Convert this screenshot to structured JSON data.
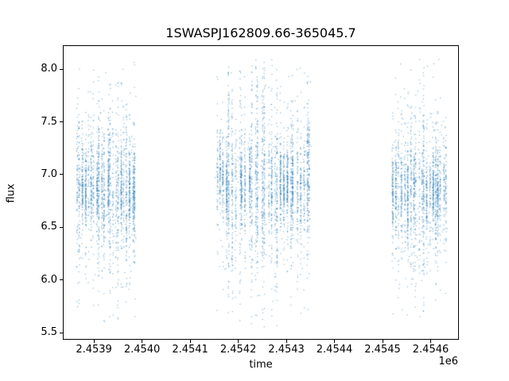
{
  "chart_data": {
    "type": "scatter",
    "title": "1SWASPJ162809.66-365045.7",
    "xlabel": "time",
    "ylabel": "flux",
    "x_offset_label": "1e6",
    "xlim": [
      2453837,
      2454657
    ],
    "ylim": [
      5.44,
      8.22
    ],
    "xticks": {
      "values": [
        2453900,
        2454000,
        2454100,
        2454200,
        2454300,
        2454400,
        2454500,
        2454600
      ],
      "labels": [
        "2.4539",
        "2.4540",
        "2.4541",
        "2.4542",
        "2.4543",
        "2.4544",
        "2.4545",
        "2.4546"
      ]
    },
    "yticks": {
      "values": [
        5.5,
        6.0,
        6.5,
        7.0,
        7.5,
        8.0
      ],
      "labels": [
        "5.5",
        "6.0",
        "6.5",
        "7.0",
        "7.5",
        "8.0"
      ]
    },
    "grid": false,
    "legend": null,
    "marker_color": "#1f77b4",
    "marker_alpha": 0.55,
    "marker_size_px": 1.2,
    "background": "#ffffff",
    "seed": 42,
    "series": [
      {
        "name": "flux",
        "clusters": [
          {
            "x_start": 2453862,
            "x_end": 2453989,
            "streaks": 22,
            "flux_center": 6.88,
            "flux_core_min": 6.55,
            "flux_core_max": 7.25,
            "flux_min": 5.6,
            "flux_max": 8.08
          },
          {
            "x_start": 2454152,
            "x_end": 2454352,
            "streaks": 30,
            "flux_center": 6.9,
            "flux_core_min": 6.55,
            "flux_core_max": 7.3,
            "flux_min": 5.55,
            "flux_max": 8.1
          },
          {
            "x_start": 2454520,
            "x_end": 2454636,
            "streaks": 20,
            "flux_center": 6.85,
            "flux_core_min": 6.5,
            "flux_core_max": 7.25,
            "flux_min": 5.6,
            "flux_max": 8.12
          }
        ]
      }
    ]
  }
}
